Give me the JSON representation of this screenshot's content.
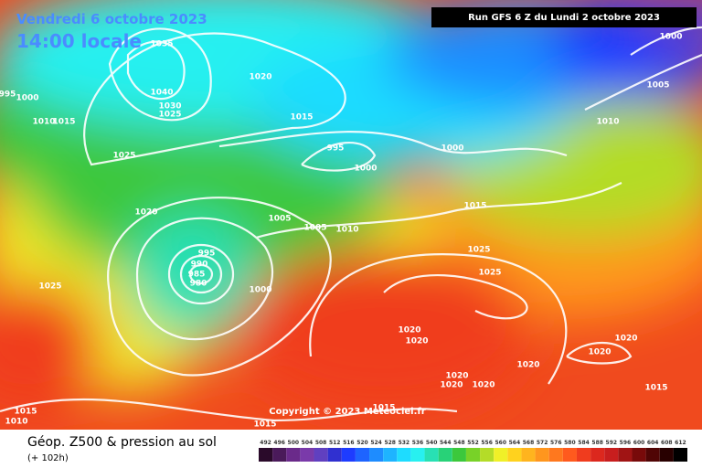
{
  "header": {
    "valid": "Vendredi 6 octobre 2023",
    "local_time": "14:00 locale",
    "run": "Run GFS 6 Z du Lundi 2 octobre 2023"
  },
  "copyright": "Copyright © 2023 Meteociel.fr",
  "footer": {
    "title": "Géop. Z500 & pression au sol",
    "lead": "(+ 102h)"
  },
  "isobar_labels": [
    1035,
    1040,
    1030,
    1025,
    1020,
    995,
    1000,
    1015,
    1010,
    1025,
    1015,
    995,
    1000,
    1000,
    1020,
    1005,
    1005,
    1010,
    1015,
    995,
    990,
    985,
    980,
    1000,
    1025,
    1025,
    1025,
    1020,
    1020,
    1020,
    1020,
    1020,
    1020,
    1020,
    1020,
    1015,
    1015,
    1010,
    1015,
    1015,
    1000,
    1005,
    1010
  ],
  "scale": {
    "labels": [
      492,
      496,
      500,
      504,
      508,
      512,
      516,
      520,
      524,
      528,
      532,
      536,
      540,
      544,
      548,
      552,
      556,
      560,
      564,
      568,
      572,
      576,
      580,
      584,
      588,
      592,
      596,
      600,
      604,
      608,
      612
    ],
    "colors": [
      "#2a0a2a",
      "#4a1a5a",
      "#6a2a8a",
      "#7a3aaa",
      "#6040c0",
      "#3030d0",
      "#1e3cff",
      "#1e64ff",
      "#1e8cff",
      "#1eb4ff",
      "#1edcff",
      "#28f0f0",
      "#28e0b4",
      "#28d278",
      "#3cc83c",
      "#78d228",
      "#b4dc28",
      "#f0f028",
      "#ffd21e",
      "#ffb41e",
      "#ff961e",
      "#ff781e",
      "#ff5a1e",
      "#f03c1e",
      "#dc281e",
      "#c81e1e",
      "#a01414",
      "#780a0a",
      "#500505",
      "#280000",
      "#000000"
    ]
  }
}
